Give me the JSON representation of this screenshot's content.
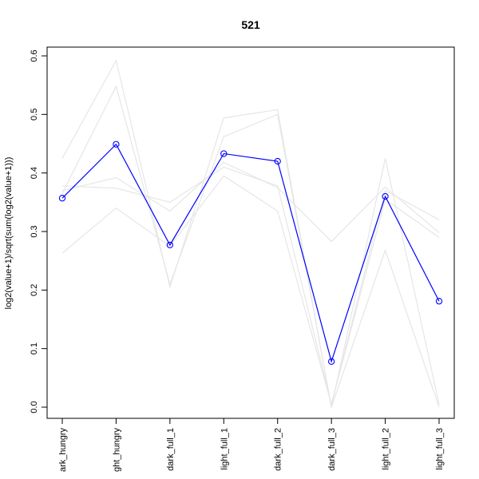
{
  "chart_data": {
    "type": "line",
    "title": "521",
    "ylabel": "log2(value+1)/sqrt(sum(log2(value+1)))",
    "xlabel": "",
    "categories": [
      "dark_hungry",
      "light_hungry",
      "dark_full_1",
      "light_full_1",
      "dark_full_2",
      "dark_full_3",
      "light_full_2",
      "light_full_3"
    ],
    "tick_labels": [
      "ark_hungry",
      "ght_hungry",
      "dark_full_1",
      "light_full_1",
      "dark_full_2",
      "dark_full_3",
      "light_full_2",
      "light_full_3"
    ],
    "ylim": [
      0,
      0.6
    ],
    "yticks": [
      0.0,
      0.1,
      0.2,
      0.3,
      0.4,
      0.5,
      0.6
    ],
    "ytick_labels": [
      "0.0",
      "0.1",
      "0.2",
      "0.3",
      "0.4",
      "0.5",
      "0.6"
    ],
    "grid": false,
    "highlight_color": "#0000ff",
    "background_color": "#e6e6e6",
    "highlight_series": {
      "values": [
        0.357,
        0.449,
        0.277,
        0.433,
        0.42,
        0.078,
        0.36,
        0.181
      ]
    },
    "background_series": [
      {
        "values": [
          0.425,
          0.592,
          0.205,
          0.494,
          0.508,
          0.0,
          0.268,
          0.0
        ]
      },
      {
        "values": [
          0.365,
          0.548,
          0.21,
          0.462,
          0.5,
          0.0,
          0.425,
          0.005
        ]
      },
      {
        "values": [
          0.263,
          0.34,
          0.275,
          0.395,
          0.335,
          0.005,
          0.355,
          0.29
        ]
      },
      {
        "values": [
          0.37,
          0.392,
          0.335,
          0.418,
          0.375,
          0.283,
          0.376,
          0.298
        ]
      },
      {
        "values": [
          0.378,
          0.374,
          0.35,
          0.41,
          0.378,
          0.005,
          0.37,
          0.32
        ]
      }
    ]
  }
}
